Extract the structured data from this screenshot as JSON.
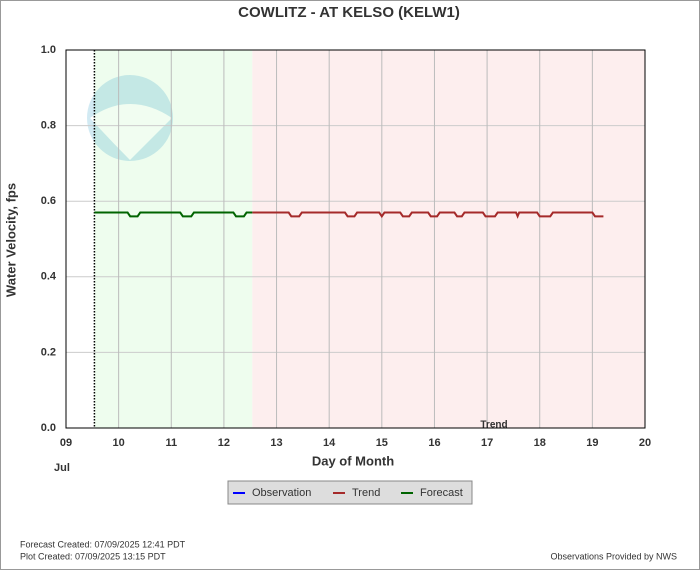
{
  "chart_data": {
    "type": "line",
    "title": "COWLITZ - AT KELSO  (KELW1)",
    "x_label": "Day of Month",
    "y_label": "Water Velocity, fps",
    "month_label": "Jul",
    "annotation": "Trend",
    "xlim": [
      9,
      20
    ],
    "xticks": [
      {
        "value": 9,
        "label": "09"
      },
      10,
      11,
      12,
      13,
      14,
      15,
      16,
      17,
      18,
      19,
      20
    ],
    "ylim": [
      0,
      1
    ],
    "yticks": [
      {
        "value": 0,
        "label": "0.0"
      },
      0.2,
      0.4,
      0.6,
      0.8,
      {
        "value": 1,
        "label": "1.0"
      }
    ],
    "grid": true,
    "now_x": 9.54,
    "regions": [
      {
        "x": [
          9.54,
          12.54
        ],
        "color": "#eefdee"
      },
      {
        "x": [
          12.54,
          20
        ],
        "color": "#fdeeee"
      }
    ],
    "series": [
      {
        "name": "Observation",
        "color": "#0000ff",
        "x": [],
        "values": []
      },
      {
        "name": "Trend",
        "color": "#a52a2a",
        "x": [
          12.54,
          13.23,
          13.28,
          13.43,
          13.48,
          14.3,
          14.35,
          14.48,
          14.53,
          14.95,
          15.0,
          15.05,
          15.35,
          15.4,
          15.52,
          15.57,
          15.88,
          15.93,
          16.05,
          16.1,
          16.38,
          16.43,
          16.52,
          16.57,
          16.92,
          16.97,
          17.15,
          17.2,
          17.55,
          17.58,
          17.61,
          17.95,
          18.0,
          18.2,
          18.25,
          19.0,
          19.05,
          19.21
        ],
        "values": [
          0.57,
          0.57,
          0.56,
          0.56,
          0.57,
          0.57,
          0.56,
          0.56,
          0.57,
          0.57,
          0.56,
          0.57,
          0.57,
          0.56,
          0.56,
          0.57,
          0.57,
          0.56,
          0.56,
          0.57,
          0.57,
          0.56,
          0.56,
          0.57,
          0.57,
          0.56,
          0.56,
          0.57,
          0.57,
          0.56,
          0.57,
          0.57,
          0.56,
          0.56,
          0.57,
          0.57,
          0.56,
          0.56
        ]
      },
      {
        "name": "Forecast",
        "color": "#006400",
        "x": [
          9.54,
          10.17,
          10.22,
          10.36,
          10.41,
          11.17,
          11.22,
          11.38,
          11.43,
          12.18,
          12.23,
          12.38,
          12.43,
          12.54
        ],
        "values": [
          0.57,
          0.57,
          0.56,
          0.56,
          0.57,
          0.57,
          0.56,
          0.56,
          0.57,
          0.57,
          0.56,
          0.56,
          0.57,
          0.57
        ]
      }
    ],
    "footer_left": [
      "Forecast Created: 07/09/2025 12:41 PDT",
      "Plot Created: 07/09/2025 13:15 PDT"
    ],
    "footer_right": "Observations Provided by NWS"
  }
}
